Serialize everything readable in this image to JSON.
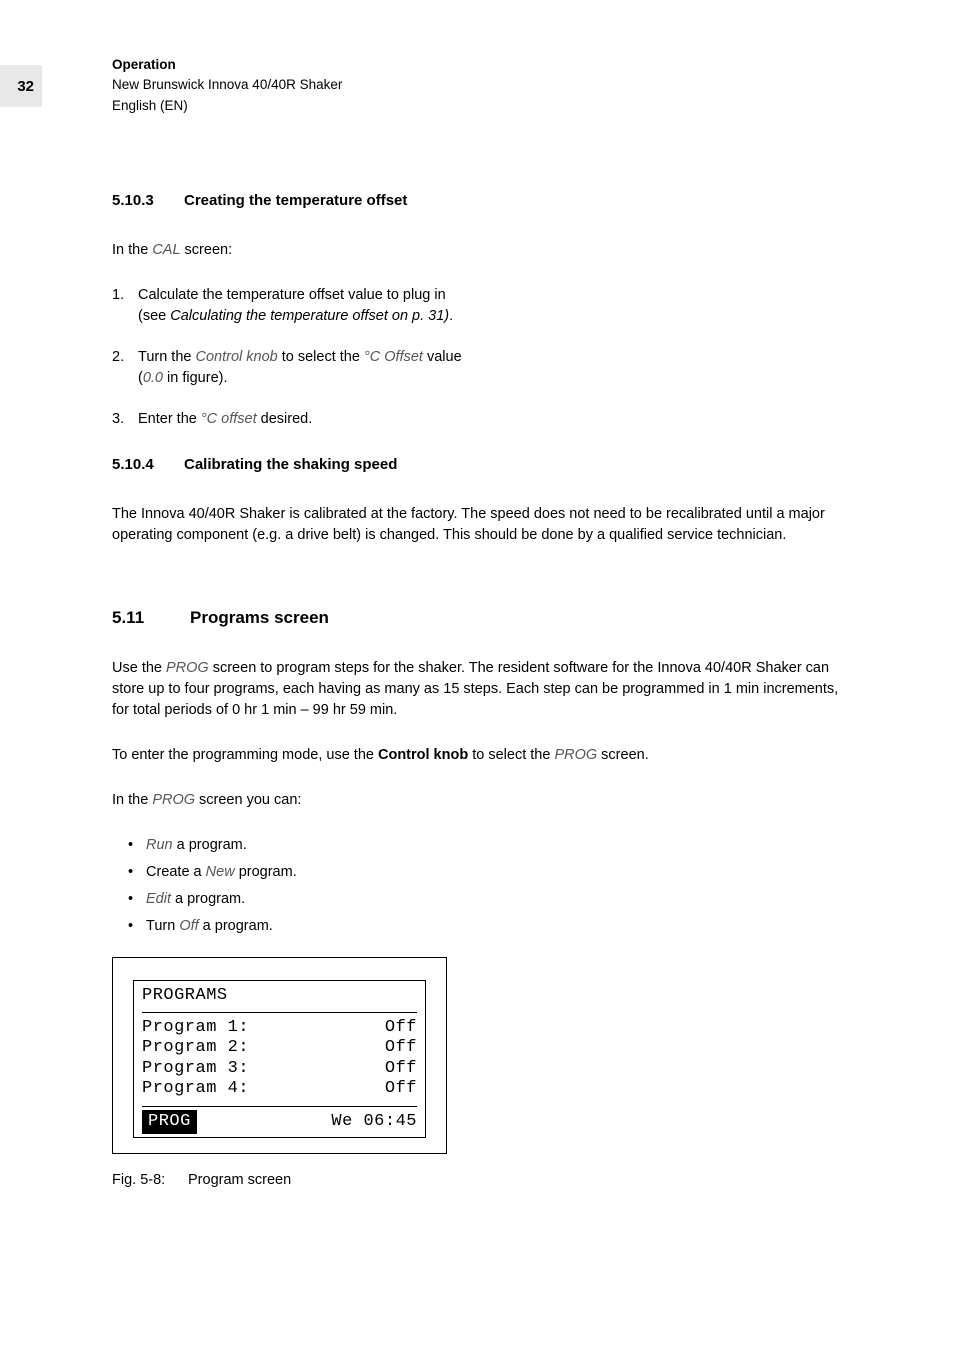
{
  "page_number": "32",
  "header": {
    "title": "Operation",
    "line1": "New Brunswick Innova 40/40R Shaker",
    "line2": "English (EN)"
  },
  "sec_5_10_3": {
    "num": "5.10.3",
    "title": "Creating the temperature offset",
    "intro_pre": "In the ",
    "intro_cal": "CAL",
    "intro_post": " screen:",
    "step1_a": "Calculate the temperature offset value to plug in",
    "step1_b_pre": "(see ",
    "step1_b_ital": "Calculating the temperature offset on p. 31)",
    "step1_b_post": ".",
    "step2_a": "Turn the ",
    "step2_b": "Control knob",
    "step2_c": " to select the ",
    "step2_d": "°C Offset",
    "step2_e": " value",
    "step2_f_pre": "(",
    "step2_f_ital": "0.0",
    "step2_f_post": " in figure).",
    "step3_a": "Enter the ",
    "step3_b": "°C offset",
    "step3_c": " desired."
  },
  "sec_5_10_4": {
    "num": "5.10.4",
    "title": "Calibrating the shaking speed",
    "para": "The Innova 40/40R Shaker is calibrated at the factory. The speed does not need to be recalibrated until a major operating component (e.g. a drive belt) is changed. This should be done by a qualified service technician."
  },
  "sec_5_11": {
    "num": "5.11",
    "title": "Programs screen",
    "para1_a": "Use the ",
    "para1_b": "PROG",
    "para1_c": " screen to program steps for the shaker. The resident software for the Innova 40/40R Shaker can store up to four programs, each having as many as 15 steps. Each step can be programmed in 1 min increments, for total periods of 0 hr 1 min – 99 hr 59 min.",
    "para2_a": "To enter the programming mode, use the ",
    "para2_b": "Control knob",
    "para2_c": " to select the ",
    "para2_d": "PROG",
    "para2_e": " screen.",
    "para3_a": "In the ",
    "para3_b": "PROG",
    "para3_c": " screen you can:",
    "bullets": {
      "b1_a": "Run",
      "b1_b": " a program.",
      "b2_a": "Create a ",
      "b2_b": "New",
      "b2_c": " program.",
      "b3_a": "Edit",
      "b3_b": " a program.",
      "b4_a": "Turn ",
      "b4_b": "Off",
      "b4_c": " a program."
    }
  },
  "lcd": {
    "title": "PROGRAMS",
    "rows": [
      {
        "label": "Program 1:",
        "value": "Off"
      },
      {
        "label": "Program 2:",
        "value": "Off"
      },
      {
        "label": "Program 3:",
        "value": "Off"
      },
      {
        "label": "Program 4:",
        "value": "Off"
      }
    ],
    "footer_left": "PROG",
    "footer_right": "We 06:45"
  },
  "figure": {
    "num": "Fig. 5-8:",
    "caption": "Program screen"
  }
}
